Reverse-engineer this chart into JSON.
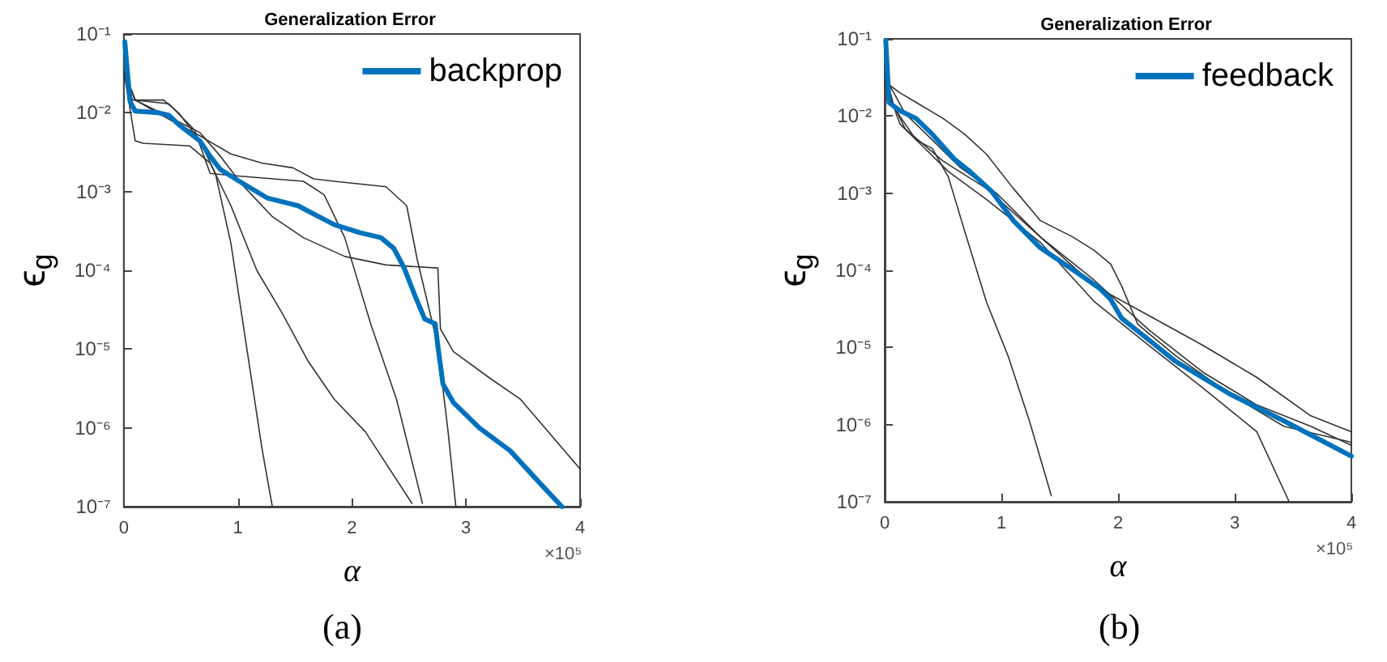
{
  "chart_data": [
    {
      "type": "line",
      "title": "Generalization Error",
      "xlabel": "α",
      "ylabel": "ϵ$_{g}$",
      "annotations": [
        "×10⁵",
        "(a)"
      ],
      "log": "y",
      "grid": false,
      "legend": "top right",
      "marker": "none",
      "line_style": "solid",
      "xlim": [
        0,
        4
      ],
      "xticks": [
        0,
        1,
        2,
        3,
        4
      ],
      "ylim": [
        1e-07,
        0.1
      ],
      "yticks": [
        {
          "value": 1e-07,
          "label": "10⁻⁷"
        },
        {
          "value": 1e-06,
          "label": "10⁻⁶"
        },
        {
          "value": 1e-05,
          "label": "10⁻⁵"
        },
        {
          "value": 0.0001,
          "label": "10⁻⁴"
        },
        {
          "value": 0.001,
          "label": "10⁻³"
        },
        {
          "value": 0.01,
          "label": "10⁻²"
        },
        {
          "value": 0.1,
          "label": "10⁻¹"
        }
      ],
      "series": [
        {
          "color": "#333333",
          "x": [
            0,
            0.077,
            0.349,
            0.485,
            0.667,
            0.803,
            0.939,
            1.075,
            1.211,
            1.302
          ],
          "values": [
            0.034,
            0.0145,
            0.0145,
            0.0098,
            0.0044,
            0.0017,
            0.00022,
            1.1e-05,
            5.5e-07,
            1e-07
          ]
        },
        {
          "color": "#333333",
          "x": [
            0,
            0.1,
            0.168,
            0.576,
            0.757,
            0.939,
            1.166,
            1.392,
            1.619,
            1.846,
            2.118,
            2.526
          ],
          "values": [
            0.034,
            0.0044,
            0.0041,
            0.0038,
            0.0023,
            0.00066,
            0.0001,
            2.8e-05,
            6.9e-06,
            2.3e-06,
            8.9e-07,
            1.1e-07
          ]
        },
        {
          "color": "#333333",
          "x": [
            0,
            0.1,
            0.395,
            0.621,
            0.757,
            0.939,
            1.574,
            1.756,
            1.937,
            2.164,
            2.391,
            2.618
          ],
          "values": [
            0.034,
            0.0145,
            0.013,
            0.006,
            0.0017,
            0.0016,
            0.00135,
            0.00091,
            0.00026,
            2.1e-05,
            2.3e-06,
            1.1e-07
          ]
        },
        {
          "color": "#333333",
          "x": [
            0,
            0.1,
            0.395,
            0.667,
            0.939,
            1.211,
            1.483,
            1.664,
            1.846,
            2.299,
            2.48,
            2.571,
            2.753,
            2.843,
            2.911
          ],
          "values": [
            0.034,
            0.0145,
            0.0083,
            0.0051,
            0.003,
            0.0023,
            0.002,
            0.00145,
            0.00135,
            0.00115,
            0.00066,
            0.00014,
            1.1e-05,
            8.9e-07,
            1e-07
          ]
        },
        {
          "color": "#333333",
          "x": [
            0,
            0.1,
            0.395,
            0.667,
            0.848,
            1.029,
            1.302,
            1.574,
            1.937,
            2.299,
            2.753,
            2.776,
            2.889,
            3.206,
            3.478,
            4
          ],
          "values": [
            0.034,
            0.0145,
            0.0089,
            0.0056,
            0.0028,
            0.00126,
            0.00048,
            0.00026,
            0.00015,
            0.000117,
            0.000107,
            1.8e-05,
            9.3e-06,
            4.3e-06,
            2.3e-06,
            3e-07
          ]
        },
        {
          "name": "backprop",
          "color": "#0072bd",
          "x": [
            0.009,
            0.054,
            0.1,
            0.304,
            0.395,
            0.485,
            0.667,
            0.757,
            0.848,
            1.03,
            1.256,
            1.528,
            1.664,
            1.846,
            2.073,
            2.254,
            2.367,
            2.458,
            2.549,
            2.639,
            2.73,
            2.753,
            2.798,
            2.889,
            3.116,
            3.388,
            3.66,
            3.841
          ],
          "values": [
            0.08,
            0.014,
            0.0105,
            0.01,
            0.0093,
            0.007,
            0.0044,
            0.0028,
            0.0019,
            0.0013,
            0.00083,
            0.00066,
            0.00052,
            0.00038,
            0.0003,
            0.00026,
            0.00019,
            0.000107,
            4.9e-05,
            2.4e-05,
            2.1e-05,
            1.1e-05,
            3.6e-06,
            2.1e-06,
            1e-06,
            5.1e-07,
            1.9e-07,
            1e-07
          ]
        }
      ]
    },
    {
      "type": "line",
      "title": "Generalization Error",
      "xlabel": "α",
      "ylabel": "ϵ$_{g}$",
      "annotations": [
        "×10⁵",
        "(b)"
      ],
      "log": "y",
      "grid": false,
      "legend": "top right",
      "marker": "none",
      "line_style": "solid",
      "xlim": [
        0,
        4
      ],
      "xticks": [
        0,
        1,
        2,
        3,
        4
      ],
      "ylim": [
        1e-07,
        0.1
      ],
      "yticks": [
        {
          "value": 1e-07,
          "label": "10⁻⁷"
        },
        {
          "value": 1e-06,
          "label": "10⁻⁶"
        },
        {
          "value": 1e-05,
          "label": "10⁻⁵"
        },
        {
          "value": 0.0001,
          "label": "10⁻⁴"
        },
        {
          "value": 0.001,
          "label": "10⁻³"
        },
        {
          "value": 0.01,
          "label": "10⁻²"
        },
        {
          "value": 0.1,
          "label": "10⁻¹"
        }
      ],
      "series": [
        {
          "color": "#333333",
          "x": [
            0,
            0.083,
            0.269,
            0.408,
            0.547,
            0.686,
            0.872,
            1.057,
            1.242,
            1.428
          ],
          "values": [
            0.039,
            0.0126,
            0.0049,
            0.0038,
            0.0016,
            0.00032,
            3.9e-05,
            7.8e-06,
            1.1e-06,
            1.2e-07
          ]
        },
        {
          "color": "#333333",
          "x": [
            0,
            0.13,
            0.315,
            0.547,
            0.872,
            1.335,
            1.798,
            2.262,
            2.725,
            3.189,
            3.467
          ],
          "values": [
            0.028,
            0.0079,
            0.0042,
            0.0019,
            0.00083,
            0.00023,
            3.9e-05,
            1.07e-05,
            3e-06,
            8.1e-07,
            1e-07
          ]
        },
        {
          "color": "#333333",
          "x": [
            0,
            0.13,
            0.269,
            0.501,
            0.686,
            0.872,
            1.103,
            1.335,
            1.613,
            1.798,
            1.937,
            2.03,
            2.169,
            2.494,
            2.957,
            3.421,
            4
          ],
          "values": [
            0.028,
            0.02,
            0.015,
            0.0093,
            0.0058,
            0.0032,
            0.00115,
            0.00044,
            0.00027,
            0.00018,
            0.00012,
            6.3e-05,
            2e-05,
            7.8e-06,
            2.5e-06,
            9.5e-07,
            5.9e-07
          ]
        },
        {
          "color": "#333333",
          "x": [
            0,
            0.176,
            0.408,
            0.64,
            0.964,
            1.335,
            1.798,
            2.262,
            2.725,
            3.189,
            3.652,
            4
          ],
          "values": [
            0.033,
            0.0107,
            0.0049,
            0.0022,
            0.00098,
            0.00027,
            6.3e-05,
            2.6e-05,
            1.07e-05,
            4.1e-06,
            1.3e-06,
            8.1e-07
          ]
        },
        {
          "color": "#333333",
          "x": [
            0,
            0.176,
            0.501,
            0.872,
            1.335,
            1.798,
            2.262,
            2.725,
            3.189,
            3.652,
            4
          ],
          "values": [
            0.024,
            0.0068,
            0.0026,
            0.00115,
            0.00027,
            7.4e-05,
            1.7e-05,
            4.8e-06,
            1.8e-06,
            9.5e-07,
            5.4e-07
          ]
        },
        {
          "name": "feedback",
          "color": "#0072bd",
          "x": [
            0.009,
            0.037,
            0.13,
            0.269,
            0.408,
            0.593,
            0.732,
            0.918,
            1.103,
            1.335,
            1.613,
            1.845,
            1.937,
            2.03,
            2.262,
            2.494,
            2.957,
            3.421,
            4
          ],
          "values": [
            0.095,
            0.015,
            0.0117,
            0.0093,
            0.0058,
            0.0028,
            0.0019,
            0.00105,
            0.00044,
            0.000195,
            0.000102,
            5.8e-05,
            4.2e-05,
            2.4e-05,
            1.26e-05,
            6.6e-06,
            2.5e-06,
            1.12e-06,
            3.9e-07
          ]
        }
      ]
    }
  ]
}
